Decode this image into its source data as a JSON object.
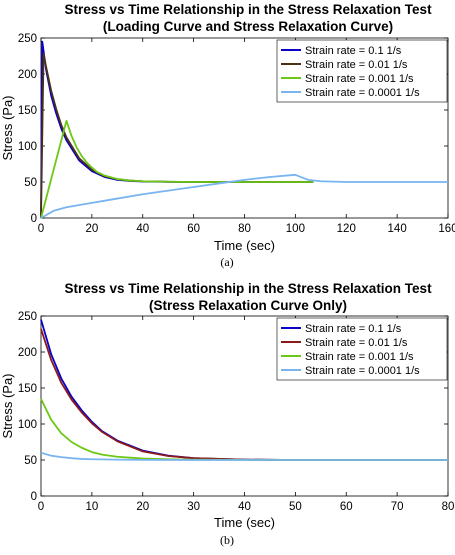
{
  "chart_data": [
    {
      "type": "line",
      "title": "Stress vs Time Relationship in the Stress Relaxation Test",
      "subtitle": "(Loading Curve and Stress Relaxation Curve)",
      "xlabel": "Time (sec)",
      "ylabel": "Stress (Pa)",
      "xlim": [
        0,
        160
      ],
      "ylim": [
        0,
        250
      ],
      "xticks": [
        0,
        20,
        40,
        60,
        80,
        100,
        120,
        140,
        160
      ],
      "yticks": [
        0,
        50,
        100,
        150,
        200,
        250
      ],
      "grid": false,
      "legend_position": "top-right",
      "panel_label": "(a)",
      "series": [
        {
          "name": "Strain rate = 0.1 1/s",
          "color": "#0a00c8",
          "x": [
            0,
            0.5,
            2,
            4,
            6,
            8,
            10,
            15,
            20,
            25,
            30,
            35,
            40,
            50,
            60,
            70,
            80,
            90,
            100,
            107
          ],
          "y": [
            0,
            245,
            206,
            170,
            145,
            124,
            108,
            80,
            65,
            57,
            53,
            51.5,
            50.7,
            50.2,
            50,
            50,
            50,
            50,
            50,
            50
          ]
        },
        {
          "name": "Strain rate = 0.01 1/s",
          "color": "#4b3214",
          "x": [
            0,
            1,
            2,
            4,
            6,
            8,
            10,
            15,
            20,
            25,
            30,
            35,
            40,
            50,
            60,
            70,
            80,
            90,
            100,
            107
          ],
          "y": [
            0,
            228,
            210,
            177,
            151,
            129,
            112,
            83,
            67,
            58,
            54,
            52,
            51,
            50.3,
            50,
            50,
            50,
            50,
            50,
            50
          ]
        },
        {
          "name": "Strain rate = 0.001 1/s",
          "color": "#6cc814",
          "x": [
            0,
            10,
            12,
            14,
            16,
            18,
            20,
            22,
            25,
            30,
            35,
            40,
            50,
            60,
            70,
            80,
            90,
            100,
            107
          ],
          "y": [
            0,
            135,
            114,
            98,
            86,
            77,
            70,
            64,
            59,
            54,
            52,
            51,
            50.3,
            50,
            50,
            50,
            50,
            50,
            50
          ]
        },
        {
          "name": "Strain rate = 0.0001 1/s",
          "color": "#78b4f0",
          "x": [
            0,
            5,
            10,
            20,
            30,
            40,
            50,
            60,
            70,
            80,
            90,
            100,
            102,
            105,
            110,
            120,
            130,
            140,
            150,
            160
          ],
          "y": [
            0,
            10,
            15,
            21,
            27,
            33,
            38,
            43,
            48,
            53,
            57,
            60,
            57,
            53,
            51,
            50,
            50,
            50,
            50,
            50
          ]
        }
      ]
    },
    {
      "type": "line",
      "title": "Stress vs Time Relationship in the Stress Relaxation Test",
      "subtitle": "(Stress Relaxation Curve Only)",
      "xlabel": "Time (sec)",
      "ylabel": "Stress (Pa)",
      "xlim": [
        0,
        80
      ],
      "ylim": [
        0,
        250
      ],
      "xticks": [
        0,
        10,
        20,
        30,
        40,
        50,
        60,
        70,
        80
      ],
      "yticks": [
        0,
        50,
        100,
        150,
        200,
        250
      ],
      "grid": false,
      "legend_position": "top-right",
      "panel_label": "(b)",
      "series": [
        {
          "name": "Strain rate = 0.1 1/s",
          "color": "#0a00c8",
          "x": [
            0,
            2,
            4,
            6,
            8,
            10,
            12,
            15,
            20,
            25,
            30,
            40,
            50,
            60,
            70,
            80
          ],
          "y": [
            245,
            197,
            163,
            138,
            119,
            103,
            90,
            77,
            63,
            56,
            52.5,
            50.5,
            50,
            50,
            50,
            50
          ]
        },
        {
          "name": "Strain rate = 0.01 1/s",
          "color": "#8b1a1a",
          "x": [
            0,
            2,
            4,
            6,
            8,
            10,
            12,
            15,
            20,
            25,
            30,
            40,
            50,
            60,
            70,
            80
          ],
          "y": [
            232,
            189,
            157,
            134,
            116,
            101,
            89,
            76,
            62,
            55.5,
            52.5,
            50.5,
            50,
            50,
            50,
            50
          ]
        },
        {
          "name": "Strain rate = 0.001 1/s",
          "color": "#6cc814",
          "x": [
            0,
            2,
            4,
            6,
            8,
            10,
            12,
            15,
            20,
            25,
            30,
            40,
            50,
            60,
            70,
            80
          ],
          "y": [
            135,
            106,
            87,
            75,
            67,
            61,
            57.5,
            54.5,
            52,
            51,
            50.5,
            50.2,
            50,
            50,
            50,
            50
          ]
        },
        {
          "name": "Strain rate = 0.0001 1/s",
          "color": "#78b4f0",
          "x": [
            0,
            2,
            4,
            6,
            8,
            10,
            15,
            20,
            30,
            40,
            50,
            60,
            70,
            80
          ],
          "y": [
            60,
            56,
            54,
            52.5,
            51.5,
            51,
            50.5,
            50.2,
            50,
            50,
            50,
            50,
            50,
            50
          ]
        }
      ]
    }
  ]
}
